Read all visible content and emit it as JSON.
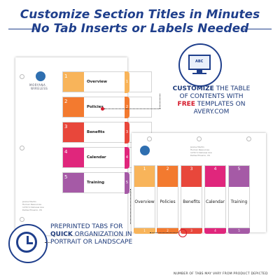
{
  "headline": {
    "line1": "Customize Section Titles in Minutes",
    "line2": "No Tab Inserts or Labels Needed"
  },
  "logo": {
    "text_line1": "MORYANA",
    "text_line2": "WIRELESS"
  },
  "portrait_sheet": {
    "rows": [
      {
        "number": "1",
        "label": "Overview",
        "color": "#f8b45a"
      },
      {
        "number": "2",
        "label": "Policies",
        "color": "#f37a2f"
      },
      {
        "number": "3",
        "label": "Benefits",
        "color": "#e8473b"
      },
      {
        "number": "4",
        "label": "Calendar",
        "color": "#e0267c"
      },
      {
        "number": "5",
        "label": "Training",
        "color": "#a55aa6"
      }
    ],
    "address": [
      "Janine Martin",
      "Human Resources",
      "1234 S Oakview Ave",
      "Dallas Phoenix, US"
    ]
  },
  "landscape_sheet": {
    "columns": [
      {
        "number": "1",
        "label": "Overview",
        "color": "#f8b45a"
      },
      {
        "number": "2",
        "label": "Policies",
        "color": "#f37a2f"
      },
      {
        "number": "3",
        "label": "Benefits",
        "color": "#e8473b"
      },
      {
        "number": "4",
        "label": "Calendar",
        "color": "#e0267c"
      },
      {
        "number": "5",
        "label": "Training",
        "color": "#a55aa6"
      }
    ],
    "address": [
      "Janine Martin",
      "Human Resources",
      "1234 S Oakview Ave",
      "Dallas Phoenix, US"
    ]
  },
  "customize_callout": {
    "line1_accent": "CUSTOMIZE",
    "line1_rest": "THE TABLE",
    "line2": "OF CONTENTS WITH",
    "line3_accent": "FREE",
    "line3_rest": "TEMPLATES ON",
    "line4": "AVERY.COM",
    "icon_text": "ABC"
  },
  "preprinted_callout": {
    "line1": "PREPRINTED TABS FOR",
    "line2_accent": "QUICK",
    "line2_rest": "ORGANIZATION IN",
    "line3": "PORTRAIT OR LANDSCAPE"
  },
  "footnote": "NUMBER OF TABS MAY VARY FROM PRODUCT DEPICTED",
  "colors": {
    "brand_blue": "#1f3f8c",
    "accent_red": "#d51a2b"
  }
}
